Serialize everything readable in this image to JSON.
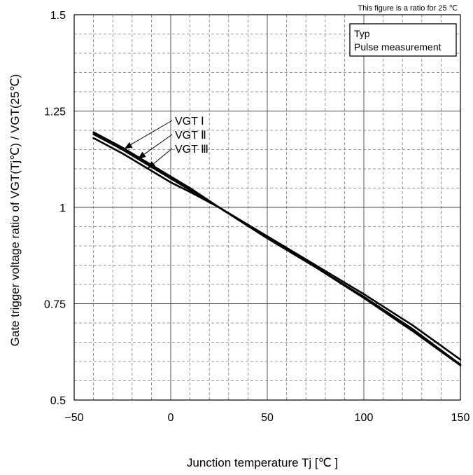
{
  "note": "This figure is a ratio for 25 ℃",
  "legend": {
    "line1": "Typ",
    "line2": "Pulse measurement"
  },
  "chart_data": {
    "type": "line",
    "title": "",
    "xlabel": "Junction  temperature    Tj  [℃ ]",
    "ylabel": "Gate trigger  voltage  ratio  of  VGT(Tj℃)  /  VGT(25℃)",
    "xlim": [
      -50,
      150
    ],
    "ylim": [
      0.5,
      1.5
    ],
    "x_ticks": [
      -50,
      0,
      50,
      100,
      150
    ],
    "x_tick_labels": [
      "−50",
      "0",
      "50",
      "100",
      "150"
    ],
    "y_ticks": [
      0.5,
      0.75,
      1,
      1.25,
      1.5
    ],
    "y_tick_labels": [
      "0.5",
      "0.75",
      "1",
      "1.25",
      "1.5"
    ],
    "grid": true,
    "series": [
      {
        "name": "VGT Ⅰ",
        "x": [
          -40,
          -25,
          -10,
          0,
          10,
          25,
          50,
          75,
          100,
          125,
          150
        ],
        "y": [
          1.195,
          1.155,
          1.11,
          1.08,
          1.05,
          1.0,
          0.92,
          0.845,
          0.765,
          0.68,
          0.59
        ]
      },
      {
        "name": "VGT Ⅱ",
        "x": [
          -40,
          -25,
          -10,
          0,
          10,
          25,
          50,
          75,
          100,
          125,
          150
        ],
        "y": [
          1.19,
          1.15,
          1.105,
          1.075,
          1.045,
          1.0,
          0.92,
          0.845,
          0.768,
          0.685,
          0.592
        ]
      },
      {
        "name": "VGT Ⅲ",
        "x": [
          -40,
          -25,
          -10,
          0,
          10,
          25,
          50,
          75,
          100,
          125,
          150
        ],
        "y": [
          1.18,
          1.14,
          1.095,
          1.065,
          1.04,
          1.0,
          0.925,
          0.85,
          0.775,
          0.695,
          0.605
        ]
      }
    ]
  }
}
